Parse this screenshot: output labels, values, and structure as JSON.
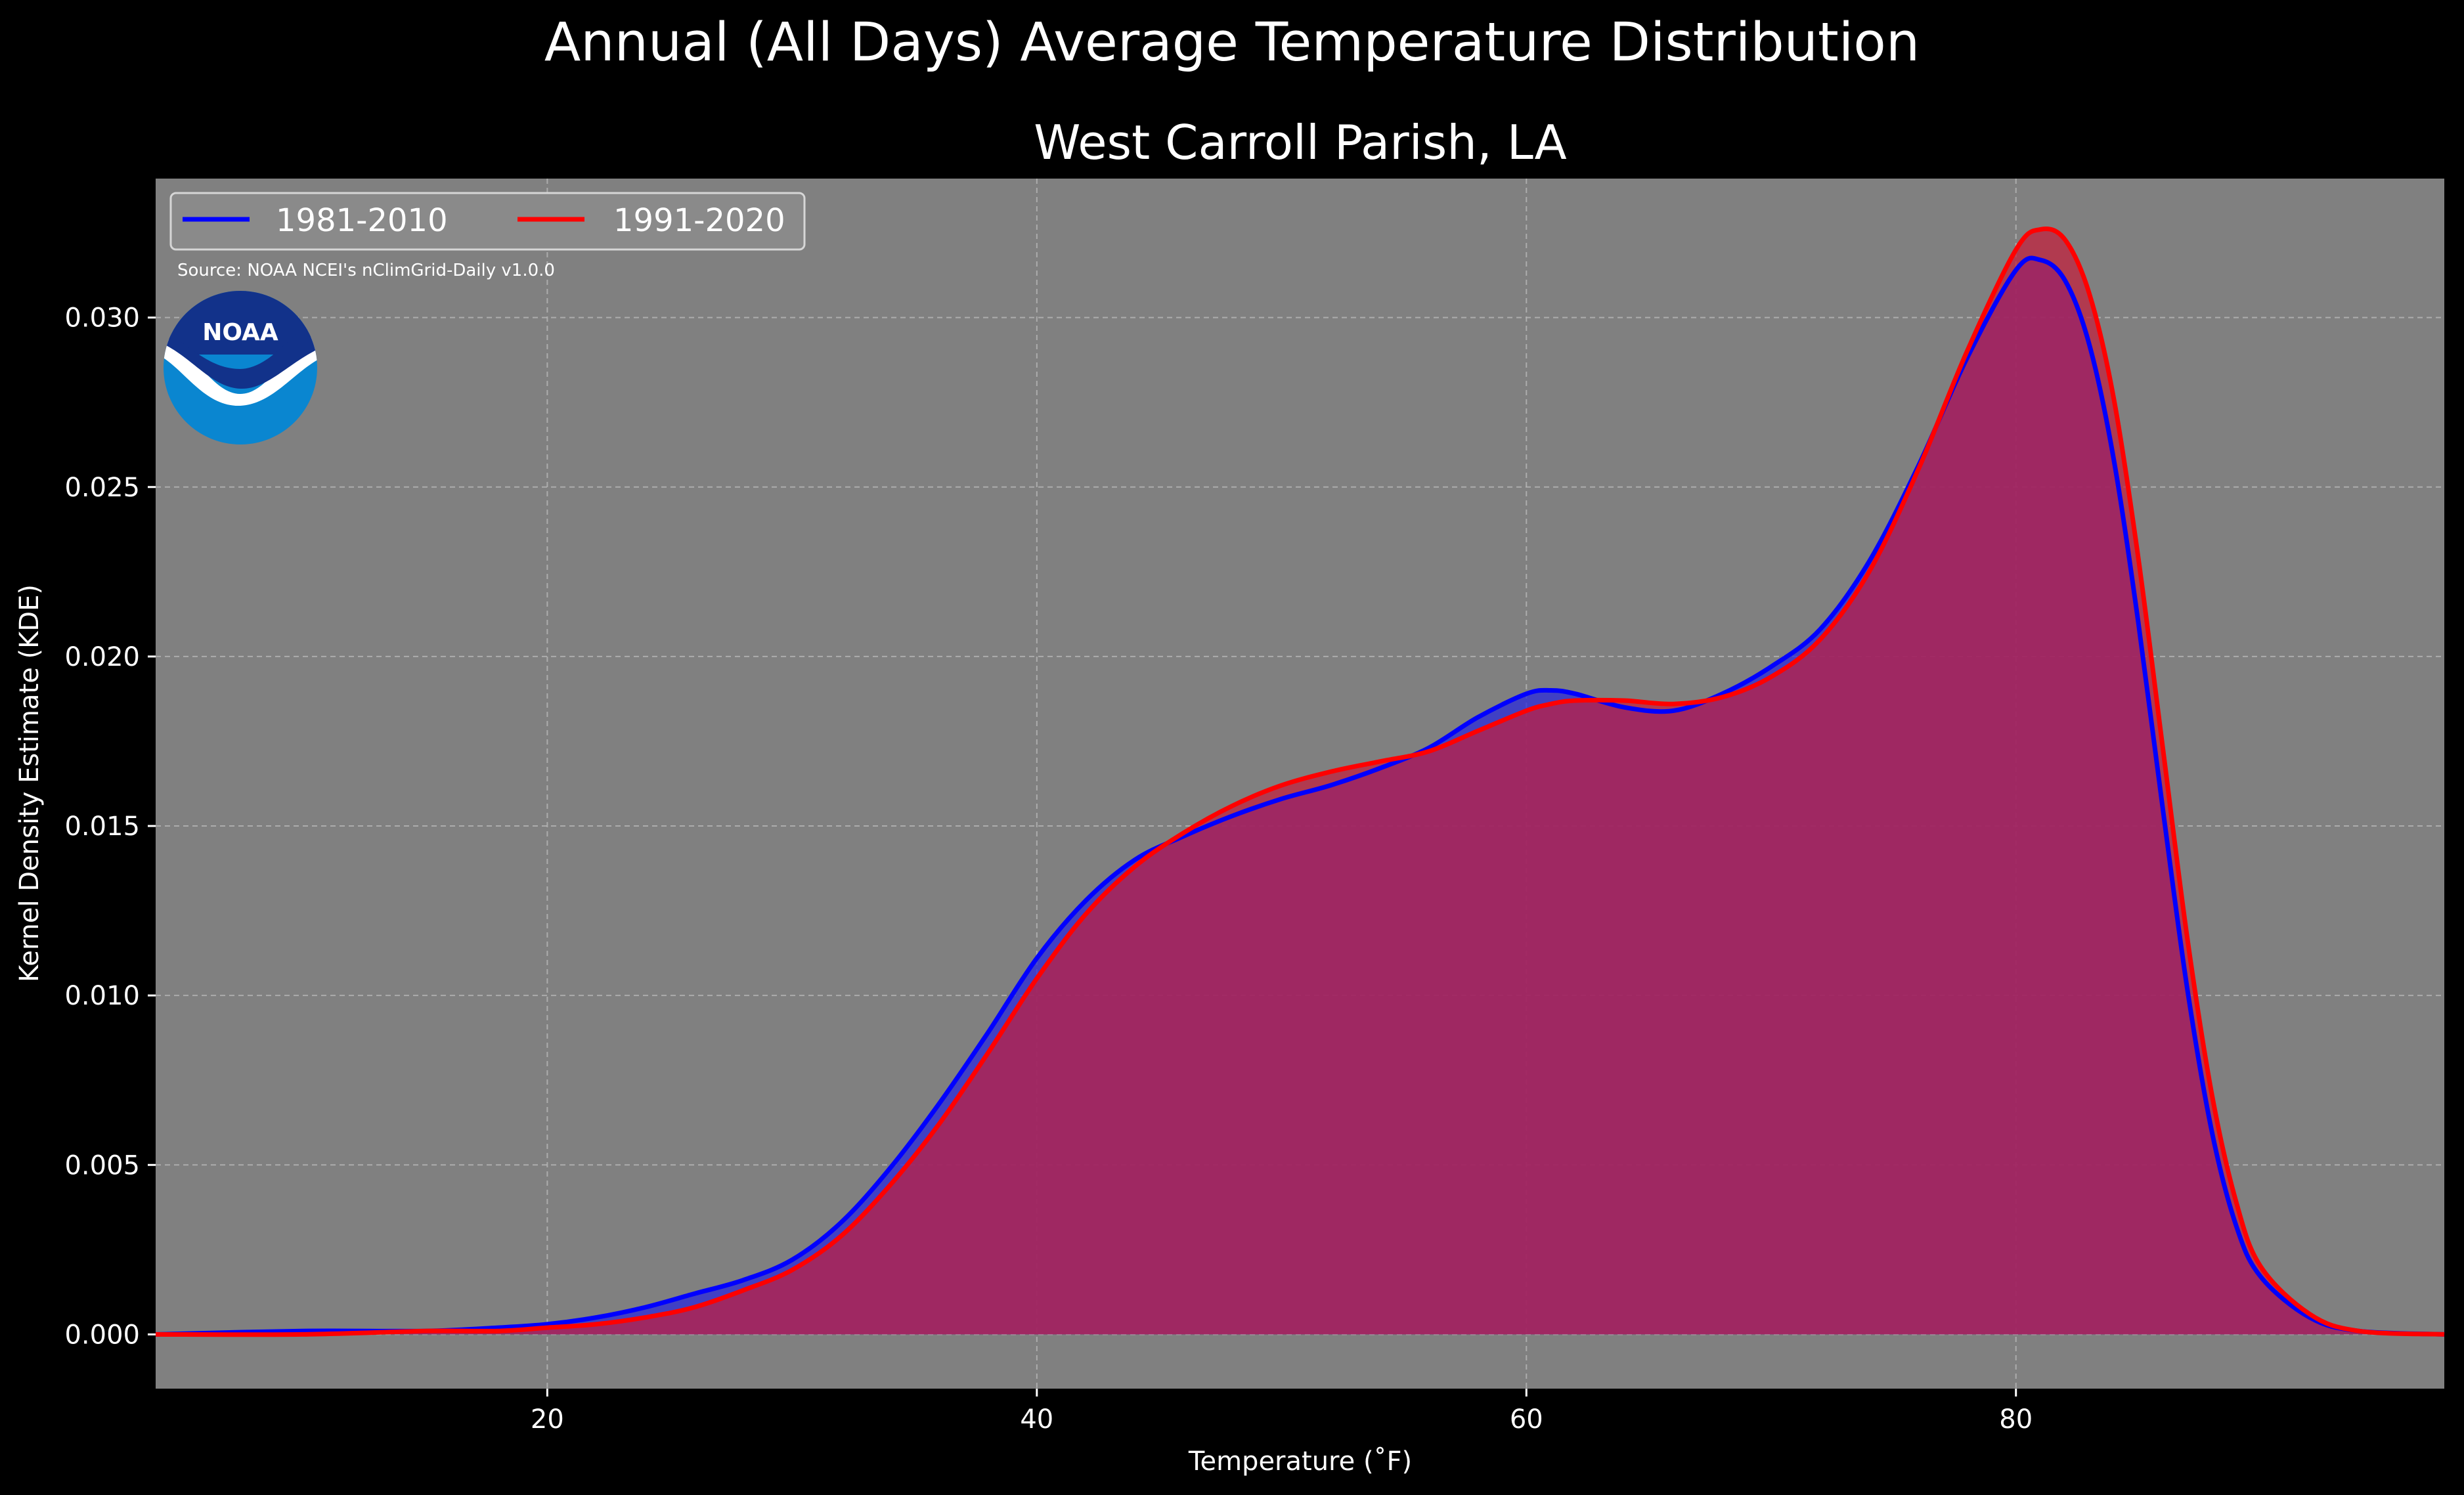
{
  "chart_data": {
    "type": "area",
    "title": "Annual (All Days) Average Temperature Distribution",
    "subtitle": "West Carroll Parish, LA",
    "xlabel": "Temperature (˚F)",
    "ylabel": "Kernel Density Estimate (KDE)",
    "xlim": [
      4,
      97.5
    ],
    "ylim": [
      -0.0016,
      0.0341
    ],
    "xticks": [
      20,
      40,
      60,
      80
    ],
    "yticks": [
      0.0,
      0.005,
      0.01,
      0.015,
      0.02,
      0.025,
      0.03
    ],
    "ytick_labels": [
      "0.000",
      "0.005",
      "0.010",
      "0.015",
      "0.020",
      "0.025",
      "0.030"
    ],
    "grid": true,
    "legend_position": "top-left",
    "source_note": "Source: NOAA NCEI's nClimGrid-Daily v1.0.0",
    "logo_text": "NOAA",
    "x": [
      4,
      10,
      15,
      18,
      20,
      22,
      24,
      26,
      28,
      30,
      32,
      34,
      36,
      38,
      40,
      42,
      44,
      46,
      48,
      50,
      52,
      54,
      56,
      58,
      60,
      61,
      62,
      64,
      66,
      68,
      70,
      72,
      74,
      76,
      78,
      80,
      81,
      82,
      83,
      84,
      85,
      86,
      87,
      88,
      89,
      90,
      92,
      94,
      97.5
    ],
    "series": [
      {
        "name": "1981-2010",
        "color": "#0000ff",
        "fill": "#2b2bdb",
        "values": [
          0.0,
          0.0001,
          0.0001,
          0.0002,
          0.0003,
          0.0005,
          0.0008,
          0.0012,
          0.0016,
          0.0022,
          0.0033,
          0.0049,
          0.0068,
          0.0089,
          0.0111,
          0.0128,
          0.014,
          0.0147,
          0.0153,
          0.0158,
          0.0162,
          0.0167,
          0.0173,
          0.0182,
          0.0189,
          0.019,
          0.0189,
          0.0185,
          0.0184,
          0.0189,
          0.0197,
          0.0208,
          0.0228,
          0.0256,
          0.0288,
          0.0314,
          0.0317,
          0.0311,
          0.0292,
          0.0258,
          0.021,
          0.0155,
          0.0102,
          0.006,
          0.0032,
          0.0017,
          0.0005,
          0.0001,
          0.0
        ]
      },
      {
        "name": "1991-2020",
        "color": "#ff0000",
        "fill": "#c41f3c",
        "values": [
          0.0,
          0.0,
          0.0001,
          0.0001,
          0.0002,
          0.0003,
          0.0005,
          0.0008,
          0.0013,
          0.0019,
          0.0029,
          0.0044,
          0.0062,
          0.0083,
          0.0105,
          0.0124,
          0.0138,
          0.0148,
          0.0156,
          0.0162,
          0.0166,
          0.0169,
          0.0172,
          0.0178,
          0.0184,
          0.0186,
          0.0187,
          0.0187,
          0.0186,
          0.0188,
          0.0194,
          0.0205,
          0.0225,
          0.0255,
          0.029,
          0.032,
          0.0326,
          0.0323,
          0.0307,
          0.0276,
          0.0229,
          0.0173,
          0.0117,
          0.0071,
          0.0039,
          0.002,
          0.0006,
          0.0001,
          0.0
        ]
      }
    ]
  }
}
